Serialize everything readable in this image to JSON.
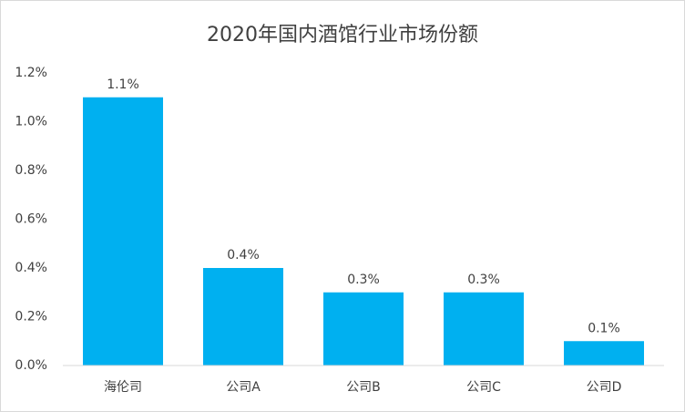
{
  "chart_data": {
    "type": "bar",
    "title": "2020年国内酒馆行业市场份额",
    "categories": [
      "海伦司",
      "公司A",
      "公司B",
      "公司C",
      "公司D"
    ],
    "values": [
      1.1,
      0.4,
      0.3,
      0.3,
      0.1
    ],
    "value_labels": [
      "1.1%",
      "0.4%",
      "0.3%",
      "0.3%",
      "0.1%"
    ],
    "color": "#00b0f0",
    "ylim": [
      0,
      1.2
    ],
    "yticks": [
      {
        "value": 0,
        "label": "0.0%"
      },
      {
        "value": 0.2,
        "label": "0.2%"
      },
      {
        "value": 0.4,
        "label": "0.4%"
      },
      {
        "value": 0.6,
        "label": "0.6%"
      },
      {
        "value": 0.8,
        "label": "0.8%"
      },
      {
        "value": 1.0,
        "label": "1.0%"
      },
      {
        "value": 1.2,
        "label": "1.2%"
      }
    ],
    "grid": false
  }
}
